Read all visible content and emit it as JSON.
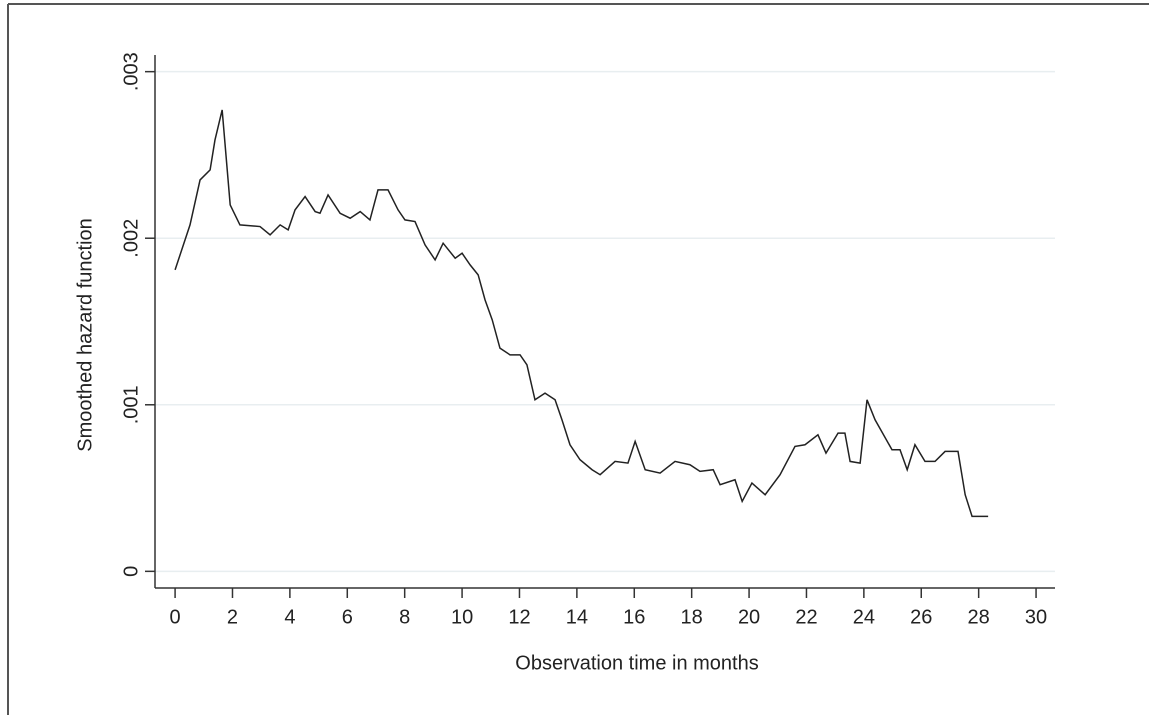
{
  "chart_data": {
    "type": "line",
    "x_label": "Observation time in months",
    "y_label": "Smoothed hazard function",
    "x": [
      0,
      0.52,
      0.87,
      1.22,
      1.39,
      1.64,
      1.92,
      2.26,
      2.96,
      3.31,
      3.66,
      3.94,
      4.18,
      4.53,
      4.88,
      5.05,
      5.33,
      5.75,
      6.1,
      6.45,
      6.79,
      7.07,
      7.42,
      7.77,
      8.01,
      8.36,
      8.71,
      9.06,
      9.34,
      9.76,
      10.0,
      10.28,
      10.56,
      10.8,
      11.05,
      11.32,
      11.67,
      12.02,
      12.26,
      12.54,
      12.89,
      13.24,
      13.48,
      13.76,
      14.11,
      14.53,
      14.81,
      15.33,
      15.78,
      16.03,
      16.38,
      16.9,
      17.42,
      17.94,
      18.29,
      18.75,
      18.99,
      19.51,
      19.76,
      20.1,
      20.56,
      21.08,
      21.6,
      21.95,
      22.4,
      22.68,
      23.1,
      23.34,
      23.52,
      23.87,
      24.11,
      24.39,
      24.98,
      25.26,
      25.51,
      25.78,
      26.13,
      26.48,
      26.83,
      27.28,
      27.53,
      27.77,
      28.33
    ],
    "series": [
      {
        "color": "#222222",
        "values": [
          0.00181,
          0.00208,
          0.00235,
          0.00241,
          0.00259,
          0.00277,
          0.0022,
          0.00208,
          0.00207,
          0.00202,
          0.00208,
          0.00205,
          0.00217,
          0.00225,
          0.00216,
          0.00215,
          0.00226,
          0.00215,
          0.00212,
          0.00216,
          0.00211,
          0.00229,
          0.00229,
          0.00217,
          0.00211,
          0.0021,
          0.00196,
          0.00187,
          0.00197,
          0.00188,
          0.00191,
          0.00184,
          0.00178,
          0.00163,
          0.00151,
          0.00134,
          0.0013,
          0.0013,
          0.00124,
          0.00103,
          0.00107,
          0.00103,
          0.00091,
          0.00076,
          0.00067,
          0.00061,
          0.00058,
          0.00066,
          0.00065,
          0.00078,
          0.00061,
          0.00059,
          0.00066,
          0.00064,
          0.0006,
          0.00061,
          0.00052,
          0.00055,
          0.00042,
          0.00053,
          0.00046,
          0.00058,
          0.00075,
          0.00076,
          0.00082,
          0.00071,
          0.00083,
          0.00083,
          0.00066,
          0.00065,
          0.00103,
          0.00091,
          0.00073,
          0.00073,
          0.00061,
          0.00076,
          0.00066,
          0.00066,
          0.00072,
          0.00072,
          0.00046,
          0.00033,
          0.00033
        ]
      }
    ],
    "xlim": [
      -0.7,
      30.66
    ],
    "xticks": [
      0,
      2,
      4,
      6,
      8,
      10,
      12,
      14,
      16,
      18,
      20,
      22,
      24,
      26,
      28,
      30
    ],
    "ylim": [
      -0.0001,
      0.0031
    ],
    "yticks": [
      0,
      {
        "value": 0.001,
        "label": ".001"
      },
      {
        "value": 0.002,
        "label": ".002"
      },
      {
        "value": 0.003,
        "label": ".003"
      }
    ],
    "grid": true
  }
}
